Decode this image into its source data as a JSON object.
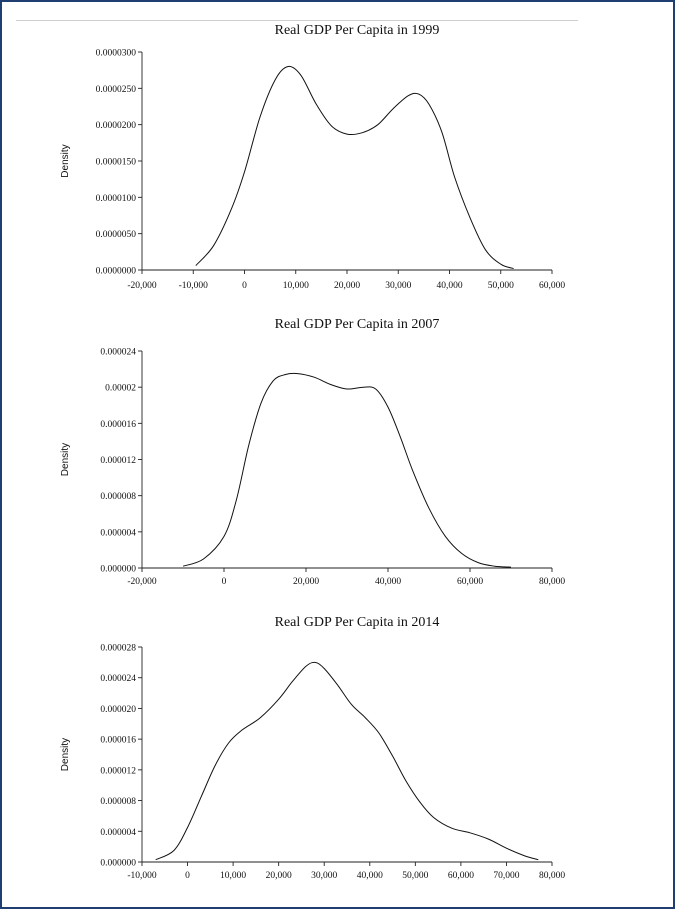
{
  "colors": {
    "frame": "#1f3f73",
    "curve": "#111111"
  },
  "chart_data": [
    {
      "type": "line",
      "title": "Real GDP Per Capita in 1999",
      "xlabel": "",
      "ylabel": "Density",
      "xlim": [
        -20000,
        60000
      ],
      "ylim": [
        0,
        3e-05
      ],
      "grid": false,
      "x_ticks": [
        -20000,
        -10000,
        0,
        10000,
        20000,
        30000,
        40000,
        50000,
        60000
      ],
      "x_tick_labels": [
        "-20,000",
        "-10,000",
        "0",
        "10,000",
        "20,000",
        "30,000",
        "40,000",
        "50,000",
        "60,000"
      ],
      "y_ticks": [
        0,
        5e-06,
        1e-05,
        1.5e-05,
        2e-05,
        2.5e-05,
        3e-05
      ],
      "y_tick_labels": [
        "0.0000000",
        "0.0000050",
        "0.0000100",
        "0.0000150",
        "0.0000200",
        "0.0000250",
        "0.0000300"
      ],
      "series": [
        {
          "x": [
            -9500,
            -6000,
            -2500,
            0,
            3000,
            6000,
            8500,
            11000,
            14000,
            17000,
            20000,
            23000,
            26000,
            29000,
            32000,
            34000,
            36000,
            38500,
            41000,
            44000,
            47000,
            50000,
            52500
          ],
          "y": [
            6e-07,
            3.4e-06,
            8.5e-06,
            1.35e-05,
            2.1e-05,
            2.62e-05,
            2.8e-05,
            2.68e-05,
            2.28e-05,
            1.98e-05,
            1.87e-05,
            1.89e-05,
            2e-05,
            2.22e-05,
            2.4e-05,
            2.42e-05,
            2.28e-05,
            1.9e-05,
            1.28e-05,
            7.2e-06,
            2.8e-06,
            8e-07,
            2e-07
          ]
        }
      ]
    },
    {
      "type": "line",
      "title": "Real GDP Per Capita in 2007",
      "xlabel": "",
      "ylabel": "Density",
      "xlim": [
        -20000,
        80000
      ],
      "ylim": [
        0,
        2.4e-05
      ],
      "grid": false,
      "x_ticks": [
        -20000,
        0,
        20000,
        40000,
        60000,
        80000
      ],
      "x_tick_labels": [
        "-20,000",
        "0",
        "20,000",
        "40,000",
        "60,000",
        "80,000"
      ],
      "y_ticks": [
        0,
        4e-06,
        8e-06,
        1.2e-05,
        1.6e-05,
        2e-05,
        2.4e-05
      ],
      "y_tick_labels": [
        "0.000000",
        "0.000004",
        "0.000008",
        "0.000012",
        "0.000016",
        "0.00002",
        "0.000024"
      ],
      "series": [
        {
          "x": [
            -10000,
            -5000,
            0,
            3000,
            6000,
            9000,
            12000,
            15000,
            18000,
            22000,
            26000,
            30000,
            34000,
            37000,
            40000,
            43000,
            46000,
            50000,
            54000,
            58000,
            62000,
            66000,
            70000
          ],
          "y": [
            2e-07,
            1e-06,
            3.5e-06,
            7.5e-06,
            1.35e-05,
            1.82e-05,
            2.07e-05,
            2.14e-05,
            2.15e-05,
            2.11e-05,
            2.03e-05,
            1.98e-05,
            2e-05,
            1.98e-05,
            1.78e-05,
            1.45e-05,
            1.08e-05,
            6.6e-06,
            3.5e-06,
            1.6e-06,
            6e-07,
            2e-07,
            1e-07
          ]
        }
      ]
    },
    {
      "type": "line",
      "title": "Real GDP Per Capita in 2014",
      "xlabel": "",
      "ylabel": "Density",
      "xlim": [
        -10000,
        80000
      ],
      "ylim": [
        0,
        2.8e-05
      ],
      "grid": false,
      "x_ticks": [
        -10000,
        0,
        10000,
        20000,
        30000,
        40000,
        50000,
        60000,
        70000,
        80000
      ],
      "x_tick_labels": [
        "-10,000",
        "0",
        "10,000",
        "20,000",
        "30,000",
        "40,000",
        "50,000",
        "60,000",
        "70,000",
        "80,000"
      ],
      "y_ticks": [
        0,
        4e-06,
        8e-06,
        1.2e-05,
        1.6e-05,
        2e-05,
        2.4e-05,
        2.8e-05
      ],
      "y_tick_labels": [
        "0.000000",
        "0.000004",
        "0.000008",
        "0.000012",
        "0.000016",
        "0.000020",
        "0.000024",
        "0.000028"
      ],
      "series": [
        {
          "x": [
            -7000,
            -3000,
            0,
            3000,
            6000,
            9000,
            12000,
            16000,
            20000,
            23000,
            26000,
            28000,
            30000,
            33000,
            36000,
            39000,
            42000,
            45000,
            48000,
            51000,
            54000,
            58000,
            62000,
            66000,
            70000,
            74000,
            77000
          ],
          "y": [
            3e-07,
            1.5e-06,
            4.5e-06,
            8.5e-06,
            1.25e-05,
            1.55e-05,
            1.72e-05,
            1.88e-05,
            2.12e-05,
            2.35e-05,
            2.55e-05,
            2.6e-05,
            2.52e-05,
            2.3e-05,
            2.05e-05,
            1.88e-05,
            1.68e-05,
            1.38e-05,
            1.05e-05,
            7.8e-06,
            5.8e-06,
            4.4e-06,
            3.8e-06,
            3e-06,
            1.8e-06,
            8e-07,
            3e-07
          ]
        }
      ]
    }
  ]
}
